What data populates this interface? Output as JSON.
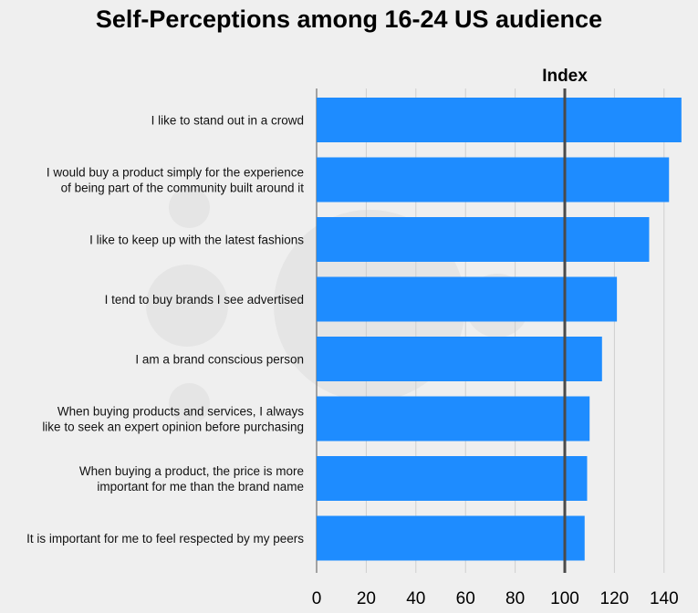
{
  "chart_data": {
    "type": "bar",
    "orientation": "horizontal",
    "title": "Self-Perceptions among 16-24 US audience",
    "categories": [
      "I like to stand out in a crowd",
      "I would buy a product simply for the experience\nof being part of the community built around it",
      "I like to keep up with the latest fashions",
      "I tend to buy brands I see advertised",
      "I am a brand conscious person",
      "When buying products and services, I always\nlike to seek an expert opinion before purchasing",
      "When buying a product, the price is more\nimportant for me than the brand name",
      "It is important for me to feel respected by my peers"
    ],
    "values": [
      147,
      142,
      134,
      121,
      115,
      110,
      109,
      108
    ],
    "xlim": [
      0,
      150
    ],
    "xticks": [
      "0",
      "20",
      "40",
      "60",
      "80",
      "100",
      "120",
      "140"
    ],
    "reference_line": {
      "value": 100,
      "label": "Index"
    },
    "grid": true,
    "colors": {
      "bar": "#1e8cff",
      "grid": "#cfcfcf",
      "reference": "#4a4a4a",
      "background": "#efefef"
    }
  }
}
